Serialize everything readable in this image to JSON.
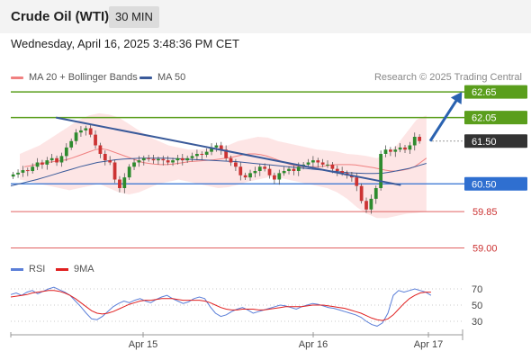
{
  "header": {
    "title": "Crude Oil (WTI)",
    "timeframe": "30 MIN"
  },
  "datetime": "Wednesday, April 16, 2025 3:48:36 PM CET",
  "legend": {
    "ma20_label": "MA 20 + Bollinger Bands",
    "ma50_label": "MA 50",
    "research": "Research © 2025 Trading Central"
  },
  "rsi_legend": {
    "rsi_label": "RSI",
    "ma9_label": "9MA"
  },
  "colors": {
    "resistance": "#5a9e1c",
    "support_blue": "#2f6fd0",
    "support_red": "#e06060",
    "current": "#333333",
    "ma20": "#f08080",
    "ma50": "#3a5a9a",
    "bollinger_fill": "#fde0e0",
    "trendline": "#3a5a9a",
    "arrow": "#2a62b0",
    "candle_up": "#2e8b2e",
    "candle_down": "#cc3333",
    "rsi": "#5b7fd8",
    "rsi_ma": "#e02020"
  },
  "chart_data": [
    {
      "type": "candlestick",
      "x_ticks": [
        "Apr 15",
        "Apr 16",
        "Apr 17"
      ],
      "ylim": [
        58.8,
        62.8
      ],
      "levels": [
        {
          "label": "62.65",
          "value": 62.65,
          "kind": "resistance",
          "style": "tag"
        },
        {
          "label": "62.05",
          "value": 62.05,
          "kind": "resistance",
          "style": "tag"
        },
        {
          "label": "61.50",
          "value": 61.5,
          "kind": "current",
          "style": "tag"
        },
        {
          "label": "60.50",
          "value": 60.5,
          "kind": "support",
          "style": "tag"
        },
        {
          "label": "59.85",
          "value": 59.85,
          "kind": "support",
          "style": "text"
        },
        {
          "label": "59.00",
          "value": 59.0,
          "kind": "support",
          "style": "text"
        }
      ],
      "trendline": {
        "from": [
          0.1,
          62.05
        ],
        "to": [
          0.68,
          60.68
        ]
      },
      "projection_arrow": {
        "from": [
          0.71,
          61.5
        ],
        "to": [
          0.8,
          62.65
        ]
      },
      "closes": [
        60.72,
        60.76,
        60.82,
        60.8,
        60.9,
        61.0,
        60.95,
        61.05,
        61.1,
        61.0,
        61.15,
        61.35,
        61.5,
        61.7,
        61.75,
        61.8,
        61.65,
        61.4,
        61.2,
        61.05,
        61.0,
        60.6,
        60.4,
        60.65,
        60.9,
        61.0,
        61.05,
        61.1,
        61.08,
        61.05,
        61.08,
        61.05,
        61.0,
        61.05,
        61.1,
        61.05,
        61.1,
        61.15,
        61.2,
        61.18,
        61.25,
        61.35,
        61.4,
        61.3,
        61.1,
        61.0,
        60.9,
        60.7,
        60.65,
        60.75,
        60.8,
        60.9,
        60.85,
        60.7,
        60.6,
        60.75,
        60.8,
        60.85,
        60.8,
        60.9,
        60.95,
        61.0,
        61.05,
        61.0,
        60.95,
        60.95,
        60.85,
        60.8,
        60.75,
        60.7,
        60.65,
        60.45,
        60.1,
        59.9,
        60.15,
        60.4,
        61.2,
        61.3,
        61.25,
        61.3,
        61.35,
        61.3,
        61.4,
        61.6,
        61.5
      ],
      "ma20": [
        60.9,
        60.92,
        60.95,
        60.98,
        61.0,
        61.02,
        61.04,
        61.06,
        61.1,
        61.15,
        61.2,
        61.25,
        61.3,
        61.32,
        61.3,
        61.25,
        61.2,
        61.15,
        61.1,
        61.05,
        61.0,
        60.98,
        60.96,
        60.95,
        60.95,
        60.96,
        60.98,
        61.0,
        61.02,
        61.03,
        61.04,
        61.05,
        61.06,
        61.08,
        61.1,
        61.12,
        61.15,
        61.18,
        61.2,
        61.2,
        61.18,
        61.15,
        61.1,
        61.05,
        61.0,
        60.95,
        60.92,
        60.9,
        60.9,
        60.9,
        60.9,
        60.92,
        60.94,
        60.95,
        60.95,
        60.95,
        60.94,
        60.92,
        60.9,
        60.88,
        60.85,
        60.82,
        60.8,
        60.8,
        60.82,
        60.85,
        60.9,
        61.0,
        61.1
      ],
      "ma50": [
        60.45,
        60.5,
        60.55,
        60.6,
        60.66,
        60.72,
        60.78,
        60.84,
        60.9,
        60.95,
        61.0,
        61.03,
        61.06,
        61.08,
        61.09,
        61.1,
        61.1,
        61.1,
        61.1,
        61.09,
        61.08,
        61.07,
        61.06,
        61.05,
        61.04,
        61.03,
        61.02,
        61.0,
        60.98,
        60.96,
        60.94,
        60.92,
        60.9,
        60.88,
        60.86,
        60.84,
        60.82,
        60.8,
        60.78,
        60.76,
        60.75,
        60.74,
        60.74,
        60.75,
        60.78,
        60.82,
        60.86,
        60.92,
        60.98
      ],
      "bollinger_upper": [
        61.2,
        61.3,
        61.4,
        61.55,
        61.7,
        61.85,
        62.0,
        62.1,
        62.15,
        62.12,
        62.05,
        61.9,
        61.75,
        61.6,
        61.5,
        61.4,
        61.35,
        61.3,
        61.3,
        61.32,
        61.35,
        61.4,
        61.5,
        61.55,
        61.6,
        61.58,
        61.5,
        61.45,
        61.4,
        61.35,
        61.3,
        61.28,
        61.25,
        61.2,
        61.18,
        61.15,
        61.1,
        61.2,
        61.4,
        61.7,
        62.0,
        62.1
      ],
      "bollinger_lower": [
        60.6,
        60.55,
        60.5,
        60.45,
        60.4,
        60.35,
        60.4,
        60.45,
        60.5,
        60.4,
        60.3,
        60.25,
        60.3,
        60.4,
        60.5,
        60.55,
        60.6,
        60.55,
        60.5,
        60.45,
        60.4,
        60.42,
        60.48,
        60.55,
        60.6,
        60.65,
        60.65,
        60.6,
        60.55,
        60.5,
        60.45,
        60.4,
        60.3,
        60.15,
        59.95,
        59.8,
        59.7,
        59.7,
        59.75,
        59.8,
        59.82,
        59.85
      ]
    },
    {
      "type": "line",
      "name": "RSI",
      "yticks": [
        70,
        50,
        30
      ],
      "ylim": [
        20,
        80
      ],
      "series": [
        {
          "name": "RSI",
          "values": [
            63,
            65,
            62,
            66,
            68,
            64,
            67,
            70,
            72,
            69,
            66,
            62,
            55,
            48,
            40,
            33,
            32,
            36,
            42,
            48,
            52,
            55,
            53,
            56,
            58,
            55,
            53,
            57,
            60,
            62,
            58,
            55,
            52,
            54,
            58,
            60,
            58,
            48,
            40,
            36,
            38,
            42,
            45,
            47,
            44,
            40,
            42,
            44,
            46,
            48,
            50,
            49,
            47,
            45,
            48,
            50,
            52,
            51,
            49,
            47,
            46,
            44,
            42,
            40,
            38,
            35,
            30,
            26,
            24,
            28,
            40,
            62,
            68,
            66,
            68,
            70,
            68,
            66,
            62
          ]
        },
        {
          "name": "9MA",
          "values": [
            60,
            61,
            62,
            63,
            65,
            66,
            67,
            68,
            68,
            67,
            65,
            62,
            58,
            53,
            48,
            43,
            40,
            39,
            40,
            42,
            45,
            48,
            51,
            53,
            55,
            56,
            56,
            57,
            58,
            58,
            58,
            57,
            56,
            56,
            56,
            56,
            55,
            53,
            50,
            47,
            45,
            44,
            44,
            45,
            45,
            45,
            44,
            44,
            45,
            46,
            47,
            48,
            48,
            48,
            48,
            49,
            50,
            50,
            50,
            49,
            48,
            47,
            46,
            44,
            42,
            40,
            37,
            34,
            32,
            31,
            33,
            38,
            45,
            52,
            58,
            62,
            65,
            66,
            66
          ]
        }
      ]
    }
  ]
}
